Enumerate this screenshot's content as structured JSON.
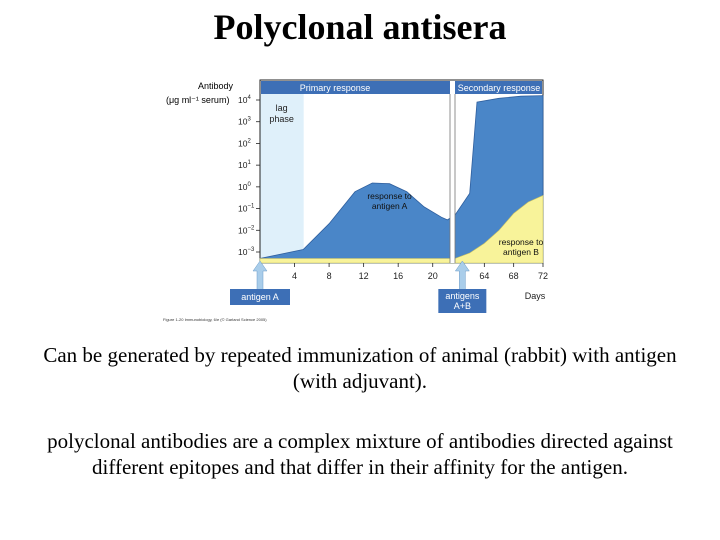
{
  "slide": {
    "title": "Polyclonal antisera",
    "paragraphs": [
      "Can be generated by repeated immunization of animal (rabbit) with antigen (with adjuvant).",
      "polyclonal antibodies are a complex mixture of antibodies directed against different epitopes and that differ in their affinity for the antigen."
    ]
  },
  "colors": {
    "antibody_a": "#4a86c8",
    "antibody_b": "#f8f39a",
    "header": "#3d6fb6",
    "lag_phase": "#dff0fa",
    "arrow": "#a9cdea"
  },
  "chart_data": {
    "type": "area",
    "title": "",
    "ylabel_line1": "Antibody",
    "ylabel_line2": "(μg ml⁻¹ serum)",
    "xlabel": "Days",
    "y_scale": "log",
    "ylim": [
      0.001,
      10000
    ],
    "y_ticks": [
      {
        "value": 10000,
        "base": "10",
        "exp": "4"
      },
      {
        "value": 1000,
        "base": "10",
        "exp": "3"
      },
      {
        "value": 100,
        "base": "10",
        "exp": "2"
      },
      {
        "value": 10,
        "base": "10",
        "exp": "1"
      },
      {
        "value": 1,
        "base": "10",
        "exp": "0"
      },
      {
        "value": 0.1,
        "base": "10",
        "exp": "−1"
      },
      {
        "value": 0.01,
        "base": "10",
        "exp": "−2"
      },
      {
        "value": 0.001,
        "base": "10",
        "exp": "−3"
      }
    ],
    "x_segments": [
      {
        "name": "Primary response",
        "xlim": [
          0,
          22
        ],
        "ticks": [
          4,
          8,
          12,
          16,
          20
        ]
      },
      {
        "name": "Secondary response",
        "xlim": [
          60,
          72
        ],
        "ticks": [
          64,
          68,
          72
        ]
      }
    ],
    "lag_phase": {
      "label_line1": "lag",
      "label_line2": "phase",
      "x_range": [
        0,
        5
      ]
    },
    "series": [
      {
        "name": "response to antigen A",
        "points": [
          [
            0,
            0.0005
          ],
          [
            5,
            0.0013
          ],
          [
            8,
            0.02
          ],
          [
            11,
            0.6
          ],
          [
            13,
            1.5
          ],
          [
            15,
            1.4
          ],
          [
            17,
            0.6
          ],
          [
            19,
            0.12
          ],
          [
            21,
            0.04
          ],
          [
            21.7,
            0.03
          ],
          [
            60,
            0.05
          ],
          [
            62,
            0.5
          ],
          [
            63,
            8000
          ],
          [
            66,
            12000
          ],
          [
            69,
            15000
          ],
          [
            72,
            16000
          ]
        ]
      },
      {
        "name": "response to antigen B",
        "points": [
          [
            0,
            0.0005
          ],
          [
            21.7,
            0.0005
          ],
          [
            60,
            0.0005
          ],
          [
            62,
            0.0009
          ],
          [
            64,
            0.0025
          ],
          [
            66,
            0.01
          ],
          [
            68,
            0.06
          ],
          [
            70,
            0.2
          ],
          [
            72,
            0.4
          ]
        ]
      }
    ],
    "annotations": [
      {
        "text_line1": "response to",
        "text_line2": "antigen A",
        "x": 15,
        "y": 0.2
      },
      {
        "text_line1": "response to",
        "text_line2": "antigen B",
        "x": 69,
        "y": 0.0015
      }
    ],
    "injections": [
      {
        "label_line1": "antigen A",
        "label_line2": "",
        "x": 0
      },
      {
        "label_line1": "antigens",
        "label_line2": "A+B",
        "x": 61
      }
    ],
    "source": "Figure 1-20 Immunobiology, 6/e (© Garland Science 2005)"
  }
}
